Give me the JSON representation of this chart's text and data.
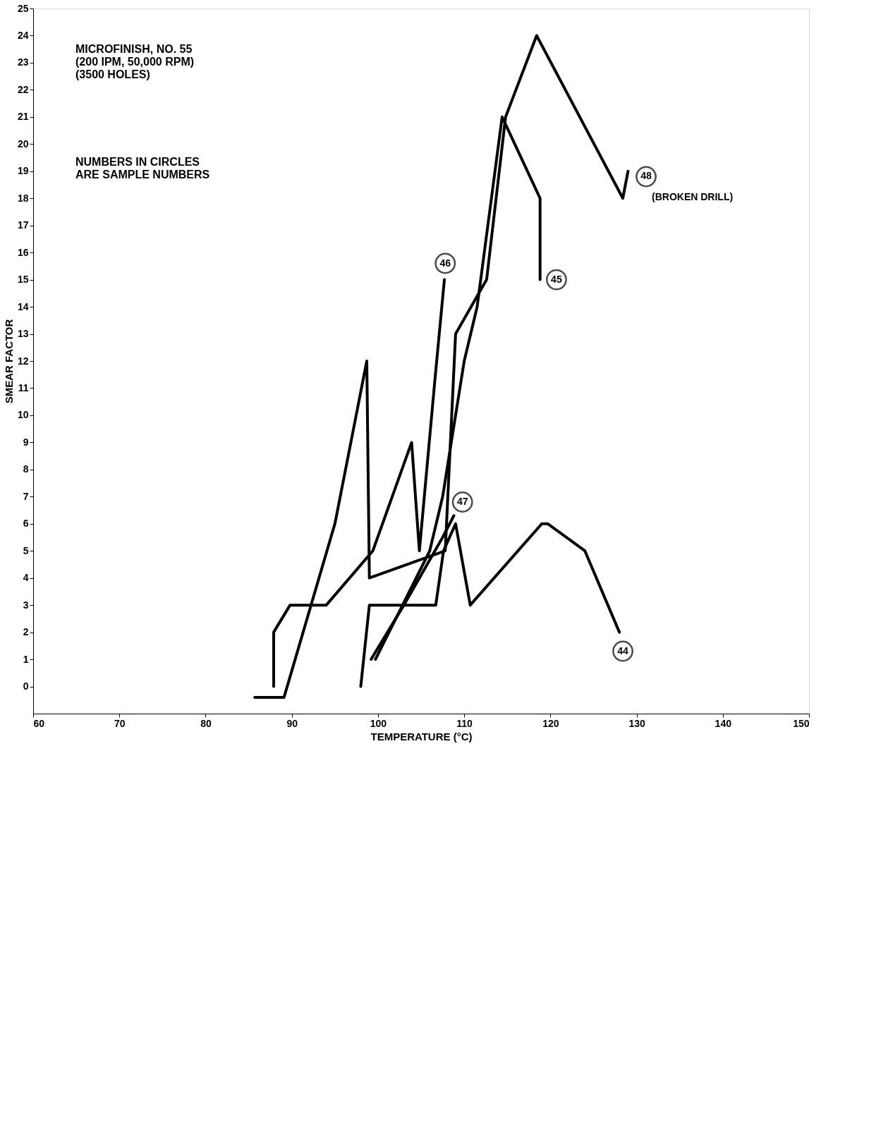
{
  "chart_data": {
    "type": "line",
    "xlabel": "TEMPERATURE (°C)",
    "ylabel": "SMEAR FACTOR",
    "xlim": [
      60,
      150
    ],
    "xticks": [
      60,
      70,
      80,
      90,
      100,
      110,
      120,
      130,
      140,
      150
    ],
    "ylim": [
      -1,
      25
    ],
    "yticks": [
      0,
      1,
      2,
      3,
      4,
      5,
      6,
      7,
      8,
      9,
      10,
      11,
      12,
      13,
      14,
      15,
      16,
      17,
      18,
      19,
      20,
      21,
      22,
      23,
      24,
      25
    ],
    "grid": false,
    "legend": false,
    "marker": "none",
    "line_style": "solid",
    "series": [
      {
        "color": "#000000",
        "x": [
          128,
          124,
          119.7,
          119,
          110.7,
          109,
          107.6,
          106.7,
          99,
          98
        ],
        "values": [
          2,
          5,
          6,
          6,
          3,
          6,
          5,
          3,
          3,
          0
        ]
      },
      {
        "color": "#000000",
        "x": [
          118.8,
          118.8,
          114.4,
          111.5,
          110,
          107.5,
          106,
          99.7
        ],
        "values": [
          15,
          18,
          21,
          14,
          12,
          7,
          5,
          1
        ]
      },
      {
        "color": "#000000",
        "x": [
          107.7,
          106.6,
          104.8,
          103.9,
          99.4,
          94,
          89.8,
          87.9,
          87.9
        ],
        "values": [
          15,
          11.3,
          5,
          9,
          5,
          3,
          3,
          2,
          0
        ]
      },
      {
        "color": "#000000",
        "x": [
          108.8,
          107.5,
          103,
          99.2
        ],
        "values": [
          6.3,
          5.5,
          3,
          1
        ]
      },
      {
        "color": "#000000",
        "x": [
          129,
          128.4,
          118.4,
          114.8,
          112.6,
          109,
          107.8,
          99,
          98.7,
          95,
          89.1,
          85.7
        ],
        "values": [
          19,
          18,
          24,
          21,
          15,
          13,
          5,
          4,
          12,
          6,
          -0.4,
          -0.4
        ]
      }
    ],
    "annotations": [
      {
        "text": "44",
        "x": 128.4,
        "y": 1.3
      },
      {
        "text": "45",
        "x": 120.7,
        "y": 15
      },
      {
        "text": "46",
        "x": 107.8,
        "y": 15.6
      },
      {
        "text": "47",
        "x": 109.8,
        "y": 6.8
      },
      {
        "text": "48",
        "x": 131.1,
        "y": 18.8
      },
      "(BROKEN DRILL)",
      "MICROFINISH, NO. 55\n(200 IPM, 50,000 RPM)\n(3500 HOLES)",
      "NUMBERS IN CIRCLES\nARE SAMPLE NUMBERS"
    ]
  }
}
